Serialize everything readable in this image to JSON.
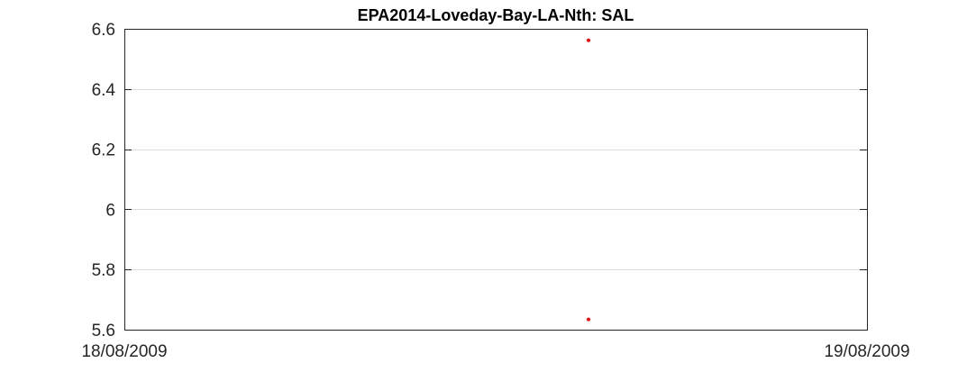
{
  "chart_data": {
    "type": "scatter",
    "title": "EPA2014-Loveday-Bay-LA-Nth: SAL",
    "xlabel": "",
    "ylabel": "",
    "x_ticks": [
      "18/08/2009",
      "19/08/2009"
    ],
    "xlim": [
      "18/08/2009 00:00",
      "19/08/2009 00:00"
    ],
    "ylim": [
      5.6,
      6.6
    ],
    "y_ticks": [
      5.6,
      5.8,
      6,
      6.2,
      6.4,
      6.6
    ],
    "grid": "horizontal",
    "legend": "none",
    "marker_color": "#ff0000",
    "series": [
      {
        "points": [
          {
            "x": "18/08/2009 15:00",
            "y": 6.562
          },
          {
            "x": "18/08/2009 15:00",
            "y": 5.634
          }
        ]
      }
    ]
  }
}
